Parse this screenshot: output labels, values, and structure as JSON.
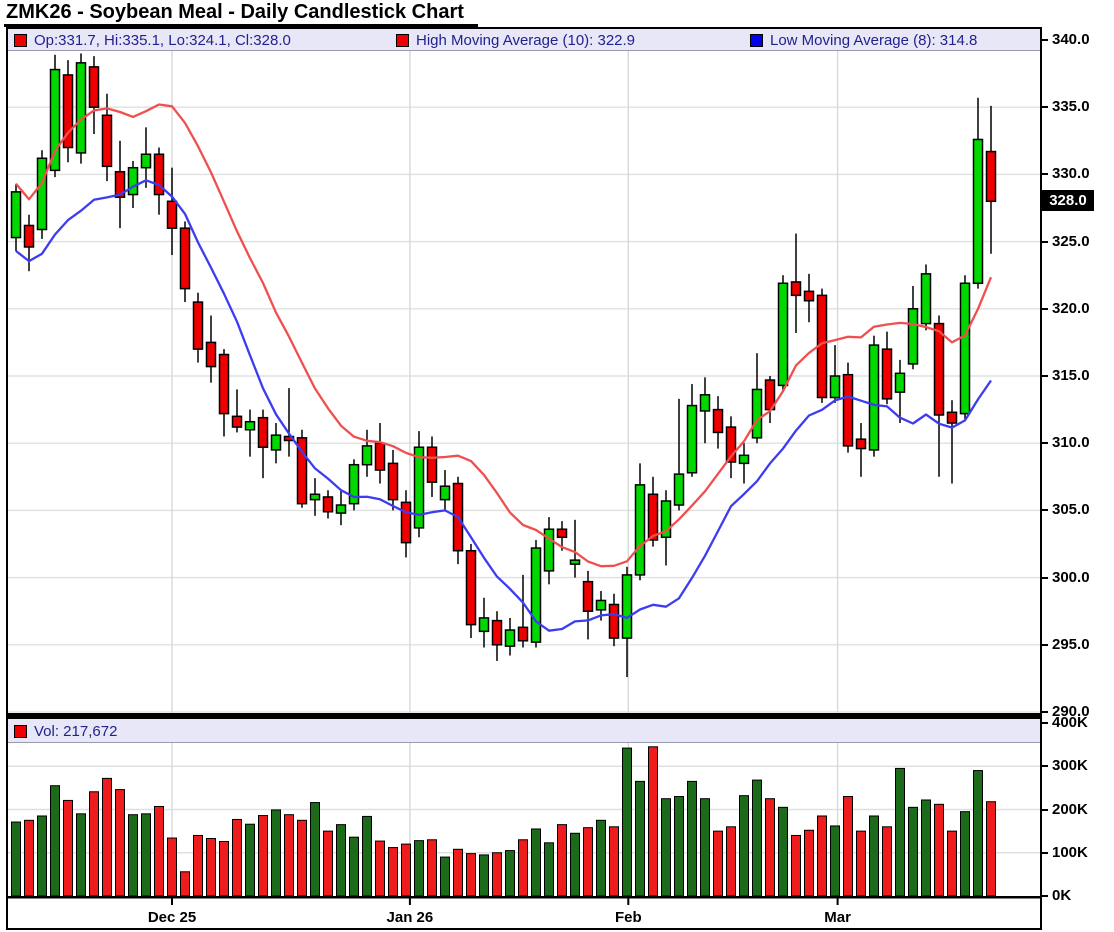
{
  "title": "ZMK26 - Soybean Meal - Daily Candlestick Chart",
  "price_pane": {
    "legend": [
      {
        "label": "Op:331.7, Hi:335.1, Lo:324.1, Cl:328.0",
        "swatch": "#ee0000"
      },
      {
        "label": "High Moving Average (10): 322.9",
        "swatch": "#ee0000"
      },
      {
        "label": "Low Moving Average (8): 314.8",
        "swatch": "#0000ee"
      }
    ],
    "last_price_label": "328.0"
  },
  "volume_pane": {
    "legend": {
      "label": "Vol: 217,672",
      "swatch": "#ee0000"
    }
  },
  "colors": {
    "candle_up": "#00d800",
    "candle_down": "#ee0000",
    "candle_border": "#000000",
    "volume_up": "#1b6b1b",
    "volume_down": "#ee1c1c",
    "ma_high": "#f04f4f",
    "ma_low": "#3c3cf0",
    "grid": "#e0e0e0",
    "strip_bg": "#e7e7f7",
    "legend_text": "#22228c",
    "badge_bg": "#000000",
    "badge_text": "#ffffff",
    "axis_text": "#000000"
  },
  "chart_data": {
    "type": "candlestick",
    "symbol": "ZMK26",
    "title": "ZMK26 - Soybean Meal - Daily Candlestick Chart",
    "price_axis": {
      "min": 290,
      "max": 340,
      "step": 5,
      "tick_labels": [
        "340.0",
        "335.0",
        "330.0",
        "325.0",
        "320.0",
        "315.0",
        "310.0",
        "305.0",
        "300.0",
        "295.0",
        "290.0"
      ]
    },
    "volume_axis": {
      "max_k": 400,
      "step_k": 100,
      "tick_labels": [
        "400K",
        "300K",
        "200K",
        "100K",
        "0K"
      ]
    },
    "x_axis": {
      "month_ticks": [
        {
          "label": "Dec 25",
          "i": 12.0
        },
        {
          "label": "Jan 26",
          "i": 30.3
        },
        {
          "label": "Feb",
          "i": 47.1
        },
        {
          "label": "Mar",
          "i": 63.2
        }
      ]
    },
    "last_close": 328.0,
    "last_volume": 217672,
    "overlays": [
      {
        "name": "High Moving Average",
        "period": 10,
        "source": "high",
        "value": 322.9
      },
      {
        "name": "Low Moving Average",
        "period": 8,
        "source": "low",
        "value": 314.8
      }
    ],
    "ohlc": [
      [
        325.3,
        329.3,
        324.3,
        328.7
      ],
      [
        326.2,
        327.0,
        322.8,
        324.6
      ],
      [
        325.9,
        331.8,
        325.2,
        331.2
      ],
      [
        330.3,
        338.9,
        329.8,
        337.8
      ],
      [
        337.4,
        338.5,
        330.9,
        332.0
      ],
      [
        331.6,
        339.0,
        330.8,
        338.3
      ],
      [
        338.0,
        338.8,
        333.0,
        335.0
      ],
      [
        334.4,
        336.0,
        329.5,
        330.6
      ],
      [
        330.2,
        332.5,
        326.0,
        328.3
      ],
      [
        328.5,
        331.0,
        327.5,
        330.5
      ],
      [
        330.5,
        333.5,
        329.0,
        331.5
      ],
      [
        331.5,
        332.0,
        327.0,
        328.5
      ],
      [
        328.0,
        330.5,
        324.0,
        326.0
      ],
      [
        326.0,
        326.5,
        320.5,
        321.5
      ],
      [
        320.5,
        321.2,
        316.0,
        317.0
      ],
      [
        317.5,
        319.5,
        314.5,
        315.7
      ],
      [
        316.6,
        317.0,
        310.5,
        312.2
      ],
      [
        312.0,
        314.0,
        310.8,
        311.2
      ],
      [
        311.0,
        312.5,
        309.0,
        311.6
      ],
      [
        311.9,
        312.5,
        307.4,
        309.7
      ],
      [
        309.5,
        311.5,
        308.5,
        310.6
      ],
      [
        310.5,
        314.1,
        309.0,
        310.2
      ],
      [
        310.4,
        311.0,
        305.2,
        305.5
      ],
      [
        305.8,
        307.4,
        304.6,
        306.2
      ],
      [
        306.0,
        306.5,
        304.4,
        304.9
      ],
      [
        304.8,
        306.5,
        303.9,
        305.4
      ],
      [
        305.5,
        308.8,
        305.0,
        308.4
      ],
      [
        308.4,
        311.0,
        307.5,
        309.8
      ],
      [
        310.0,
        311.5,
        307.0,
        308.0
      ],
      [
        308.5,
        309.5,
        305.0,
        305.8
      ],
      [
        305.6,
        306.5,
        301.5,
        302.6
      ],
      [
        303.7,
        310.9,
        303.0,
        309.7
      ],
      [
        309.7,
        310.5,
        306.0,
        307.1
      ],
      [
        305.8,
        308.0,
        305.0,
        306.8
      ],
      [
        307.0,
        307.5,
        301.0,
        302.0
      ],
      [
        302.0,
        302.5,
        295.5,
        296.5
      ],
      [
        296.0,
        298.5,
        294.8,
        297.0
      ],
      [
        296.8,
        297.5,
        293.8,
        295.0
      ],
      [
        294.9,
        297.0,
        294.2,
        296.1
      ],
      [
        296.3,
        300.2,
        294.8,
        295.3
      ],
      [
        295.2,
        302.8,
        294.8,
        302.2
      ],
      [
        300.5,
        304.5,
        299.5,
        303.6
      ],
      [
        303.6,
        304.2,
        302.0,
        303.0
      ],
      [
        301.0,
        304.3,
        300.0,
        301.3
      ],
      [
        299.7,
        300.5,
        295.4,
        297.5
      ],
      [
        297.6,
        299.0,
        296.8,
        298.3
      ],
      [
        298.0,
        298.8,
        294.9,
        295.5
      ],
      [
        295.5,
        300.8,
        292.6,
        300.2
      ],
      [
        300.2,
        308.5,
        299.8,
        306.9
      ],
      [
        306.2,
        307.5,
        302.3,
        302.8
      ],
      [
        303.0,
        306.5,
        300.9,
        305.7
      ],
      [
        305.4,
        313.3,
        305.0,
        307.7
      ],
      [
        307.8,
        314.4,
        307.5,
        312.8
      ],
      [
        312.4,
        314.9,
        310.0,
        313.6
      ],
      [
        312.5,
        313.5,
        309.6,
        310.8
      ],
      [
        311.2,
        312.0,
        307.4,
        308.6
      ],
      [
        308.5,
        310.0,
        307.0,
        309.1
      ],
      [
        310.4,
        316.7,
        310.0,
        314.0
      ],
      [
        314.7,
        315.0,
        311.5,
        312.5
      ],
      [
        314.3,
        322.5,
        313.8,
        321.9
      ],
      [
        322.0,
        325.6,
        318.2,
        321.0
      ],
      [
        321.3,
        322.6,
        319.0,
        320.6
      ],
      [
        321.0,
        321.5,
        313.0,
        313.4
      ],
      [
        313.4,
        317.3,
        313.0,
        315.0
      ],
      [
        315.1,
        316.0,
        309.3,
        309.8
      ],
      [
        310.3,
        311.5,
        307.5,
        309.6
      ],
      [
        309.5,
        318.0,
        309.0,
        317.3
      ],
      [
        317.0,
        318.3,
        312.9,
        313.3
      ],
      [
        313.8,
        316.2,
        311.5,
        315.2
      ],
      [
        315.9,
        321.7,
        315.5,
        320.0
      ],
      [
        318.9,
        323.3,
        318.4,
        322.6
      ],
      [
        318.9,
        319.5,
        307.5,
        312.1
      ],
      [
        312.3,
        313.2,
        307.0,
        311.5
      ],
      [
        312.2,
        322.5,
        311.8,
        321.9
      ],
      [
        321.9,
        335.7,
        321.5,
        332.6
      ],
      [
        331.7,
        335.1,
        324.1,
        328.0
      ]
    ],
    "volumes_k": [
      171,
      175,
      185,
      255,
      221,
      190,
      241,
      272,
      246,
      188,
      190,
      207,
      134,
      56,
      140,
      133,
      126,
      177,
      166,
      186,
      199,
      188,
      175,
      216,
      150,
      165,
      136,
      184,
      127,
      112,
      120,
      128,
      130,
      90,
      108,
      98,
      95,
      100,
      105,
      130,
      155,
      123,
      165,
      145,
      158,
      175,
      160,
      342,
      265,
      345,
      225,
      230,
      265,
      225,
      150,
      160,
      232,
      268,
      225,
      205,
      140,
      152,
      185,
      162,
      230,
      150,
      185,
      160,
      295,
      205,
      222,
      212,
      150,
      195,
      290,
      218
    ]
  }
}
